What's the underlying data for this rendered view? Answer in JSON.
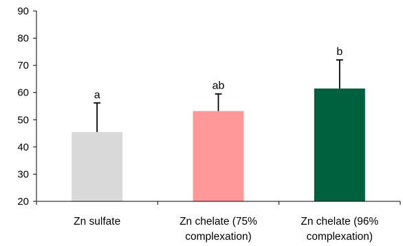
{
  "chart_data": {
    "type": "bar",
    "categories": [
      [
        "Zn sulfate"
      ],
      [
        "Zn chelate (75%",
        "complexation)"
      ],
      [
        "Zn chelate (96%",
        "complexation)"
      ]
    ],
    "values": [
      45.5,
      53.2,
      61.5
    ],
    "error_upper": [
      56.2,
      59.5,
      72.0
    ],
    "significance_labels": [
      "a",
      "ab",
      "b"
    ],
    "bar_colors": [
      "#d9d9d9",
      "#ff9999",
      "#00613e"
    ],
    "error_bar_color": "#000000",
    "ylim": [
      20,
      90
    ],
    "yticks": [
      20,
      30,
      40,
      50,
      60,
      70,
      80,
      90
    ],
    "grid": false,
    "title": "",
    "xlabel": "",
    "ylabel": ""
  }
}
